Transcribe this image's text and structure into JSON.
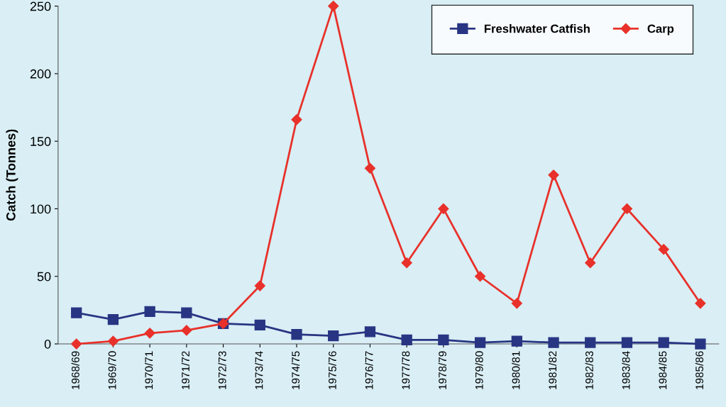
{
  "chart_data": {
    "type": "line",
    "ylabel": "Catch (Tonnes)",
    "categories": [
      "1968/69",
      "1969/70",
      "1970/71",
      "1971/72",
      "1972/73",
      "1973/74",
      "1974/75",
      "1975/76",
      "1976/77",
      "1977/78",
      "1978/79",
      "1979/80",
      "1980/81",
      "1981/82",
      "1982/83",
      "1983/84",
      "1984/85",
      "1985/86"
    ],
    "series": [
      {
        "name": "Freshwater Catfish",
        "color": "#283583",
        "marker": "square",
        "values": [
          23,
          18,
          24,
          23,
          15,
          14,
          7,
          6,
          9,
          3,
          3,
          1,
          2,
          1,
          1,
          1,
          1,
          0
        ]
      },
      {
        "name": "Carp",
        "color": "#e8312a",
        "marker": "diamond",
        "values": [
          0,
          2,
          8,
          10,
          15,
          43,
          166,
          250,
          130,
          60,
          100,
          50,
          30,
          125,
          60,
          100,
          70,
          30
        ]
      }
    ],
    "ylim": [
      0,
      250
    ],
    "yticks": [
      0,
      50,
      100,
      150,
      200,
      250
    ],
    "grid": false,
    "legend": "top right",
    "line_style": "solid"
  }
}
